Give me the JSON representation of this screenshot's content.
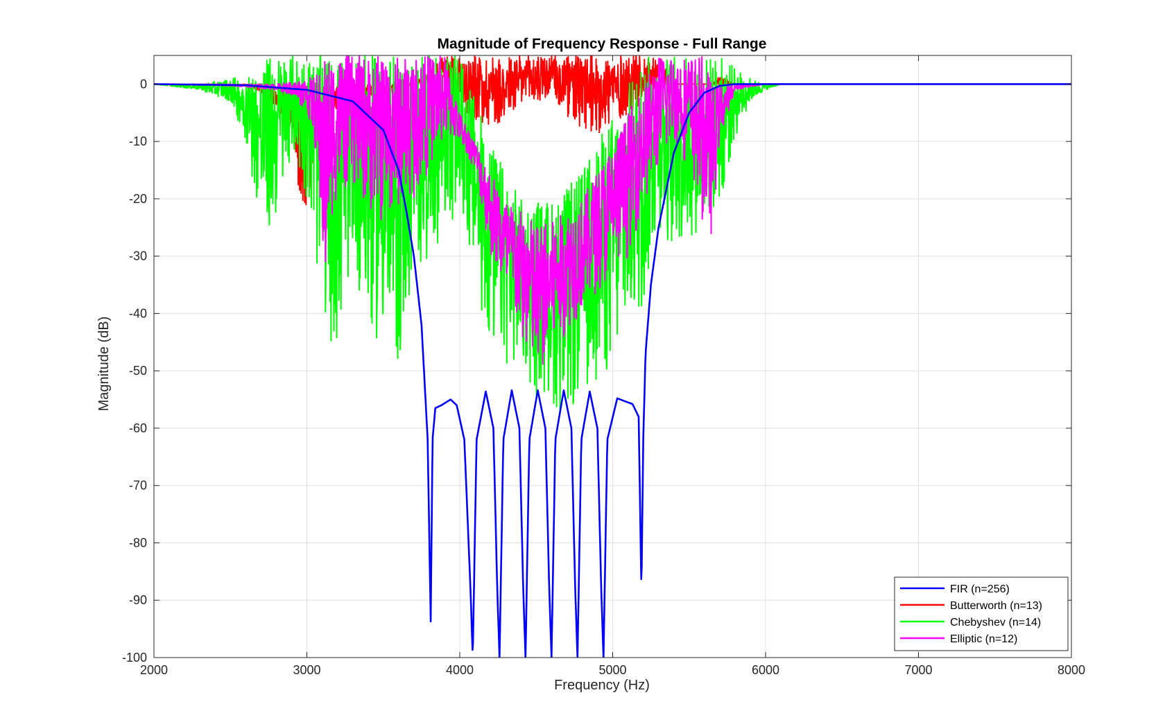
{
  "chart_data": {
    "type": "line",
    "title": "Magnitude of Frequency Response - Full Range",
    "xlabel": "Frequency (Hz)",
    "ylabel": "Magnitude (dB)",
    "xlim": [
      2000,
      8000
    ],
    "ylim": [
      -100,
      5
    ],
    "xticks": [
      2000,
      3000,
      4000,
      5000,
      6000,
      7000,
      8000
    ],
    "yticks": [
      0,
      -10,
      -20,
      -30,
      -40,
      -50,
      -60,
      -70,
      -80,
      -90,
      -100
    ],
    "grid": true,
    "legend_position": "bottom-right",
    "series": [
      {
        "name": "FIR (n=256)",
        "color": "#0000ff",
        "style": "smooth",
        "x": [
          2000,
          2600,
          3000,
          3300,
          3500,
          3600,
          3650,
          3700,
          3750,
          3790,
          3810,
          3822,
          3840,
          3880,
          3940,
          3980,
          4030,
          4070,
          4085,
          4110,
          4170,
          4220,
          4245,
          4260,
          4285,
          4340,
          4390,
          4415,
          4430,
          4455,
          4510,
          4560,
          4585,
          4600,
          4625,
          4680,
          4730,
          4755,
          4770,
          4795,
          4850,
          4900,
          4925,
          4940,
          4965,
          5030,
          5080,
          5130,
          5170,
          5188,
          5200,
          5215,
          5250,
          5300,
          5400,
          5500,
          5600,
          5700,
          5800,
          5900,
          6000,
          7000,
          8000
        ],
        "y": [
          0,
          -0.2,
          -1,
          -3,
          -8,
          -15,
          -22,
          -30,
          -42,
          -62,
          -93.7,
          -62,
          -56.5,
          -56,
          -55,
          -56,
          -62,
          -88,
          -100,
          -62,
          -53.6,
          -60,
          -88,
          -100,
          -62,
          -53.4,
          -60,
          -88,
          -100,
          -62,
          -53.4,
          -60,
          -88,
          -100,
          -62,
          -53.4,
          -60,
          -88,
          -100,
          -62,
          -53.6,
          -60,
          -88,
          -100,
          -62,
          -54.8,
          -55.3,
          -55.8,
          -58,
          -88.6,
          -62,
          -47,
          -35,
          -25,
          -12,
          -5,
          -1.5,
          -0.3,
          0,
          0,
          0,
          0,
          0
        ]
      },
      {
        "name": "Butterworth (n=13)",
        "color": "#ff0000",
        "style": "noisy",
        "envelope_x": [
          2000,
          2600,
          2700,
          2800,
          2900,
          2980,
          3000,
          3050,
          3150,
          3300,
          3500,
          3700,
          3900,
          4000,
          4200,
          4400,
          4600,
          4800,
          5000,
          5200,
          5300,
          5400,
          5550,
          5650,
          5700,
          5800,
          5900,
          6000,
          8000
        ],
        "envelope_lo": [
          0,
          -0.3,
          -1.5,
          -4,
          -8,
          -26,
          -22,
          -12,
          -5,
          -3,
          -2,
          0,
          0,
          -5,
          -8,
          -5,
          -3,
          -9.5,
          -8,
          -3,
          -1,
          0,
          0,
          0,
          -0.5,
          0,
          0,
          0,
          0
        ],
        "envelope_hi": [
          0,
          0,
          0,
          0,
          0,
          0,
          0,
          0,
          0,
          0,
          0,
          0,
          5,
          5,
          5,
          5,
          5,
          5,
          5,
          5,
          5,
          0,
          0,
          0,
          1.5,
          0,
          0,
          0,
          0
        ]
      },
      {
        "name": "Chebyshev (n=14)",
        "color": "#00ff00",
        "style": "noisy",
        "envelope_x": [
          2000,
          2300,
          2500,
          2600,
          2700,
          2750,
          2800,
          2900,
          3000,
          3100,
          3200,
          3300,
          3400,
          3500,
          3600,
          3700,
          3800,
          3900,
          4000,
          4200,
          4400,
          4500,
          4600,
          4700,
          4800,
          4900,
          5000,
          5100,
          5200,
          5300,
          5400,
          5500,
          5600,
          5700,
          5800,
          5900,
          6000,
          6100,
          8000
        ],
        "envelope_lo": [
          0,
          -1,
          -3,
          -10,
          -25,
          -27,
          -24,
          -12,
          -20,
          -40,
          -49,
          -30,
          -45,
          -45,
          -51,
          -35,
          -30,
          -26,
          -22,
          -48,
          -50,
          -55,
          -56,
          -60,
          -55,
          -52,
          -51,
          -45,
          -40,
          -25,
          -30,
          -28,
          -25,
          -22,
          -10,
          -3,
          -1,
          0,
          0
        ],
        "envelope_hi": [
          0,
          0,
          1,
          1.5,
          3,
          5,
          5,
          5,
          5,
          5,
          5,
          5,
          5,
          5,
          5,
          5,
          5,
          5,
          5,
          -10,
          -20,
          -20,
          -20,
          -18,
          -15,
          -10,
          -5,
          0,
          5,
          5,
          5,
          5,
          5,
          5,
          3,
          1,
          0,
          0,
          0
        ]
      },
      {
        "name": "Elliptic (n=12)",
        "color": "#ff00ff",
        "style": "noisy",
        "envelope_x": [
          2000,
          2500,
          2800,
          2900,
          3000,
          3050,
          3100,
          3120,
          3150,
          3200,
          3300,
          3400,
          3500,
          3600,
          3700,
          3800,
          3900,
          4000,
          4100,
          4200,
          4300,
          4400,
          4500,
          4600,
          4700,
          4800,
          4900,
          5000,
          5100,
          5200,
          5300,
          5400,
          5500,
          5550,
          5600,
          5650,
          5700,
          5800,
          6000,
          8000
        ],
        "envelope_lo": [
          0,
          -0.3,
          -1,
          -2,
          -5,
          -10,
          -30,
          -39,
          -25,
          -20,
          -18,
          -22,
          -25,
          -22,
          -20,
          -15,
          -10,
          -10,
          -15,
          -30,
          -38,
          -45,
          -53,
          -48,
          -43,
          -40,
          -36,
          -35,
          -30,
          -22,
          -15,
          -10,
          -15,
          -20,
          -25,
          -27,
          -10,
          -1,
          0,
          0
        ],
        "envelope_hi": [
          0,
          0,
          0,
          0.5,
          1,
          1.5,
          3,
          5,
          5,
          5,
          5,
          5,
          5,
          5,
          5,
          5,
          5,
          -5,
          -10,
          -15,
          -20,
          -22,
          -24,
          -24,
          -22,
          -20,
          -15,
          -10,
          -5,
          0,
          5,
          5,
          5,
          5,
          5,
          0,
          0,
          0,
          0,
          0
        ]
      }
    ]
  }
}
